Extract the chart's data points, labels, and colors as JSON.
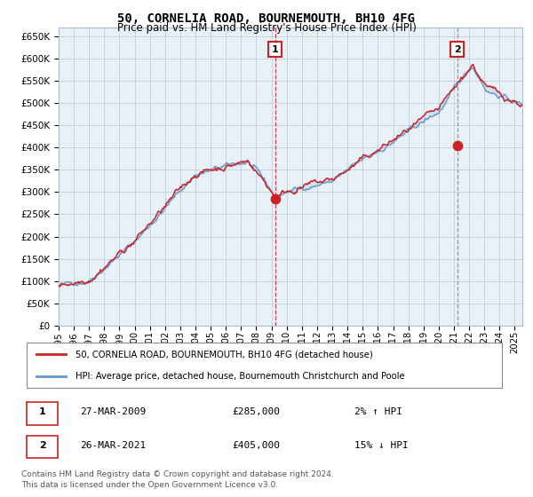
{
  "title": "50, CORNELIA ROAD, BOURNEMOUTH, BH10 4FG",
  "subtitle": "Price paid vs. HM Land Registry's House Price Index (HPI)",
  "plot_bg": "#e8f0f8",
  "hpi_color": "#6699cc",
  "price_color": "#cc2222",
  "sale1_date": 2009.23,
  "sale1_price": 285000,
  "sale2_date": 2021.23,
  "sale2_price": 405000,
  "xmin": 1995,
  "xmax": 2025.5,
  "ymin": 0,
  "ymax": 670000,
  "yticks": [
    0,
    50000,
    100000,
    150000,
    200000,
    250000,
    300000,
    350000,
    400000,
    450000,
    500000,
    550000,
    600000,
    650000
  ],
  "ytick_labels": [
    "£0",
    "£50K",
    "£100K",
    "£150K",
    "£200K",
    "£250K",
    "£300K",
    "£350K",
    "£400K",
    "£450K",
    "£500K",
    "£550K",
    "£600K",
    "£650K"
  ],
  "xticks": [
    1995,
    1996,
    1997,
    1998,
    1999,
    2000,
    2001,
    2002,
    2003,
    2004,
    2005,
    2006,
    2007,
    2008,
    2009,
    2010,
    2011,
    2012,
    2013,
    2014,
    2015,
    2016,
    2017,
    2018,
    2019,
    2020,
    2021,
    2022,
    2023,
    2024,
    2025
  ],
  "legend_house": "50, CORNELIA ROAD, BOURNEMOUTH, BH10 4FG (detached house)",
  "legend_hpi": "HPI: Average price, detached house, Bournemouth Christchurch and Poole",
  "table_row1_num": "1",
  "table_row1_date": "27-MAR-2009",
  "table_row1_price": "£285,000",
  "table_row1_hpi": "2% ↑ HPI",
  "table_row2_num": "2",
  "table_row2_date": "26-MAR-2021",
  "table_row2_price": "£405,000",
  "table_row2_hpi": "15% ↓ HPI",
  "footnote1": "Contains HM Land Registry data © Crown copyright and database right 2024.",
  "footnote2": "This data is licensed under the Open Government Licence v3.0."
}
